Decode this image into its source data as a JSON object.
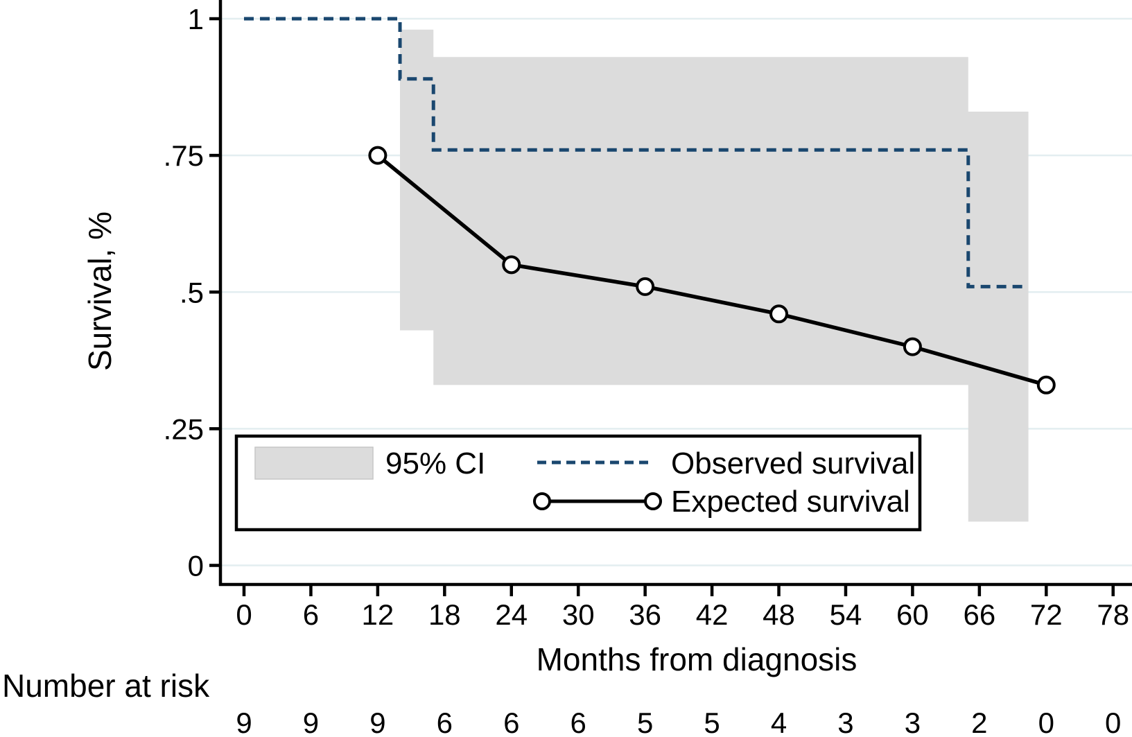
{
  "figure": {
    "ylabel": "Survival, %",
    "xlabel": "Months from diagnosis",
    "risk_label": "Number at risk"
  },
  "legend": {
    "ci": "95% CI",
    "observed": "Observed survival",
    "expected": "Expected survival"
  },
  "colors": {
    "observed": "#1a476f",
    "expected": "#000000",
    "ci_fill": "#dcdcdc",
    "grid": "#e3eef0",
    "axis": "#000000",
    "background": "#ffffff"
  },
  "chart_data": {
    "type": "line",
    "title": "",
    "xlabel": "Months from diagnosis",
    "ylabel": "Survival, %",
    "xlim": [
      0,
      79.7
    ],
    "ylim": [
      -0.035,
      1.035
    ],
    "grid": true,
    "legend_position": "inside-bottom-left",
    "x_ticks": [
      0,
      6,
      12,
      18,
      24,
      30,
      36,
      42,
      48,
      54,
      60,
      66,
      72,
      78
    ],
    "y_ticks": [
      {
        "v": 0,
        "label": "0"
      },
      {
        "v": 0.25,
        "label": ".25"
      },
      {
        "v": 0.5,
        "label": ".5"
      },
      {
        "v": 0.75,
        "label": ".75"
      },
      {
        "v": 1,
        "label": "1"
      }
    ],
    "series": [
      {
        "name": "Observed survival",
        "style": "step-dashed",
        "steps": [
          {
            "t": 0,
            "s": 1.0
          },
          {
            "t": 14,
            "s": 0.89
          },
          {
            "t": 17,
            "s": 0.76
          },
          {
            "t": 65,
            "s": 0.51
          }
        ],
        "end_t": 70.4
      },
      {
        "name": "Expected survival",
        "style": "line-circle",
        "points": [
          {
            "t": 12,
            "s": 0.75
          },
          {
            "t": 24,
            "s": 0.55
          },
          {
            "t": 36,
            "s": 0.51
          },
          {
            "t": 48,
            "s": 0.46
          },
          {
            "t": 60,
            "s": 0.4
          },
          {
            "t": 72,
            "s": 0.33
          }
        ]
      },
      {
        "name": "95% CI",
        "style": "band",
        "segments": [
          {
            "t0": 14,
            "t1": 17,
            "lo": 0.43,
            "hi": 0.98
          },
          {
            "t0": 17,
            "t1": 65,
            "lo": 0.33,
            "hi": 0.93
          },
          {
            "t0": 65,
            "t1": 70.4,
            "lo": 0.08,
            "hi": 0.83
          }
        ]
      }
    ],
    "number_at_risk": {
      "months": [
        0,
        6,
        12,
        18,
        24,
        30,
        36,
        42,
        48,
        54,
        60,
        66,
        72,
        78
      ],
      "counts": [
        9,
        9,
        9,
        6,
        6,
        6,
        5,
        5,
        4,
        3,
        3,
        2,
        0,
        0
      ]
    }
  }
}
